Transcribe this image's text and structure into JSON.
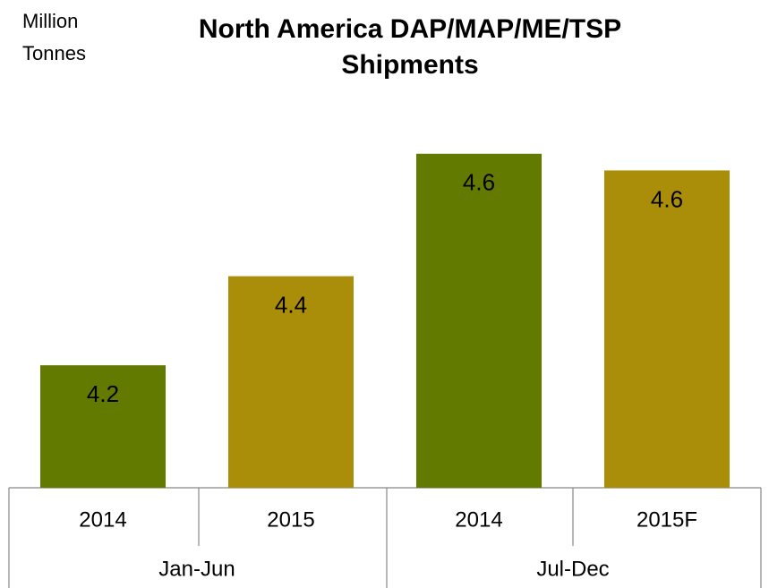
{
  "chart_data": {
    "type": "bar",
    "title": [
      "North America DAP/MAP/ME/TSP",
      "Shipments"
    ],
    "unit_label": [
      "Million",
      "Tonnes"
    ],
    "categories": [
      "2014",
      "2015",
      "2014",
      "2015F"
    ],
    "groups": [
      "Jan-Jun",
      "Jul-Dec"
    ],
    "values": [
      4.24,
      4.4,
      4.62,
      4.59
    ],
    "value_labels": [
      "4.2",
      "4.4",
      "4.6",
      "4.6"
    ],
    "colors": [
      "#627a00",
      "#aa8e0a",
      "#627a00",
      "#aa8e0a"
    ],
    "ylim": [
      4.02,
      4.7
    ]
  }
}
